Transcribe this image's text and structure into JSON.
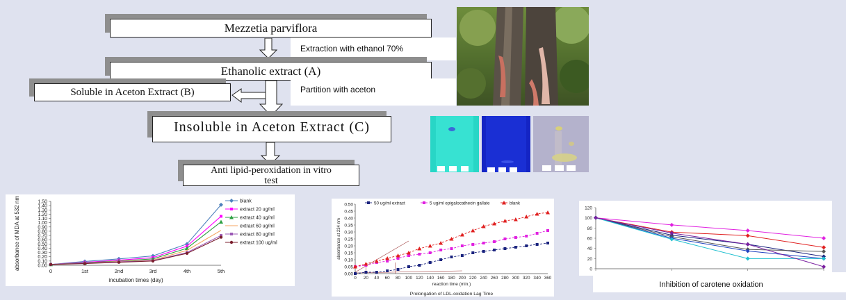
{
  "flowchart": {
    "plant": "Mezzetia parviflora",
    "step1": "Extraction with ethanol 70%",
    "extract_a": "Ethanolic extract (A)",
    "step2": "Partition with aceton",
    "soluble_b": "Soluble in Aceton Extract (B)",
    "insoluble_c": "Insoluble in Aceton Extract (C)",
    "test": "Anti lipid-peroxidation in vitro test"
  },
  "colors": {
    "background": "#dfe2ef",
    "tlc_1": "#28d6c6",
    "tlc_2": "#1424c4",
    "tlc_3": "#b4b2cc"
  },
  "chart_data": [
    {
      "type": "line",
      "xlabel": "incubation times (day)",
      "ylabel": "absorbance of MDA at 532 nm",
      "categories": [
        "0",
        "1st",
        "2nd",
        "3rd",
        "4th",
        "5th"
      ],
      "ylim": [
        0,
        1.5
      ],
      "yticks": [
        "0.00",
        "0.10",
        "0.20",
        "0.30",
        "0.40",
        "0.50",
        "0.60",
        "0.70",
        "0.80",
        "0.90",
        "1.00",
        "1.10",
        "1.20",
        "1.30",
        "1.40",
        "1.50"
      ],
      "legend_position": "right",
      "series": [
        {
          "name": "blank",
          "color": "#4f81bd",
          "values": [
            0.02,
            0.09,
            0.15,
            0.22,
            0.5,
            1.42
          ]
        },
        {
          "name": "extract 20 ug/ml",
          "color": "#ff00ff",
          "values": [
            0.02,
            0.07,
            0.12,
            0.18,
            0.45,
            1.15
          ]
        },
        {
          "name": "extract 40 ug/ml",
          "color": "#2ea043",
          "values": [
            0.02,
            0.06,
            0.1,
            0.15,
            0.4,
            1.02
          ]
        },
        {
          "name": "extract 60 ug/ml",
          "color": "#f4a460",
          "values": [
            0.02,
            0.05,
            0.09,
            0.12,
            0.35,
            0.82
          ]
        },
        {
          "name": "extract 80 ug/ml",
          "color": "#9b59b6",
          "values": [
            0.02,
            0.05,
            0.08,
            0.11,
            0.3,
            0.7
          ]
        },
        {
          "name": "extract 100 ug/ml",
          "color": "#7b1f2e",
          "values": [
            0.02,
            0.04,
            0.07,
            0.1,
            0.28,
            0.66
          ]
        }
      ]
    },
    {
      "type": "line",
      "xlabel": "reaction time (min.)",
      "ylabel": "absorbance at 234 nm",
      "caption": "Prolongation of LDL-oxidation Lag Time",
      "xlim": [
        0,
        360
      ],
      "ylim": [
        0,
        0.5
      ],
      "xticks": [
        "0",
        "20",
        "40",
        "60",
        "80",
        "100",
        "120",
        "140",
        "160",
        "180",
        "200",
        "220",
        "240",
        "260",
        "280",
        "300",
        "320",
        "340",
        "360"
      ],
      "yticks": [
        "0.00",
        "0.05",
        "0.10",
        "0.15",
        "0.20",
        "0.25",
        "0.30",
        "0.35",
        "0.40",
        "0.45",
        "0.50"
      ],
      "legend_position": "top",
      "series": [
        {
          "name": "50 ug/ml extract",
          "color": "#1a237e",
          "x": [
            0,
            20,
            40,
            60,
            80,
            100,
            120,
            140,
            160,
            180,
            200,
            220,
            240,
            260,
            280,
            300,
            320,
            340,
            360
          ],
          "y": [
            0.0,
            0.01,
            0.01,
            0.02,
            0.03,
            0.05,
            0.06,
            0.08,
            0.1,
            0.12,
            0.13,
            0.15,
            0.16,
            0.17,
            0.18,
            0.19,
            0.2,
            0.21,
            0.22
          ]
        },
        {
          "name": "5 ug/ml epigalocathecin gallate",
          "color": "#e020e0",
          "x": [
            0,
            20,
            40,
            60,
            80,
            100,
            120,
            140,
            160,
            180,
            200,
            220,
            240,
            260,
            280,
            300,
            320,
            340,
            360
          ],
          "y": [
            0.05,
            0.06,
            0.08,
            0.09,
            0.11,
            0.13,
            0.14,
            0.15,
            0.17,
            0.18,
            0.2,
            0.21,
            0.22,
            0.23,
            0.25,
            0.26,
            0.27,
            0.29,
            0.31
          ]
        },
        {
          "name": "blank",
          "color": "#e02020",
          "x": [
            0,
            20,
            40,
            60,
            80,
            100,
            120,
            140,
            160,
            180,
            200,
            220,
            240,
            260,
            280,
            300,
            320,
            340,
            360
          ],
          "y": [
            0.05,
            0.07,
            0.09,
            0.11,
            0.13,
            0.15,
            0.18,
            0.2,
            0.22,
            0.25,
            0.28,
            0.31,
            0.34,
            0.36,
            0.38,
            0.39,
            0.41,
            0.43,
            0.44
          ]
        }
      ]
    },
    {
      "type": "line",
      "title": "Inhibition of carotene oxidation",
      "ylim": [
        0,
        120
      ],
      "yticks": [
        "0",
        "20",
        "40",
        "60",
        "80",
        "100",
        "120"
      ],
      "x": [
        0,
        1,
        2,
        3
      ],
      "series": [
        {
          "color": "#e020e0",
          "values": [
            100,
            86,
            75,
            60
          ]
        },
        {
          "color": "#e02020",
          "values": [
            100,
            72,
            65,
            42
          ]
        },
        {
          "color": "#1a237e",
          "values": [
            100,
            66,
            48,
            24
          ]
        },
        {
          "color": "#555555",
          "values": [
            100,
            63,
            38,
            34
          ]
        },
        {
          "color": "#1e40c0",
          "values": [
            100,
            60,
            35,
            20
          ]
        },
        {
          "color": "#20c0d0",
          "values": [
            100,
            58,
            20,
            20
          ]
        },
        {
          "color": "#7a1fa0",
          "values": [
            100,
            70,
            48,
            4
          ]
        }
      ]
    }
  ]
}
